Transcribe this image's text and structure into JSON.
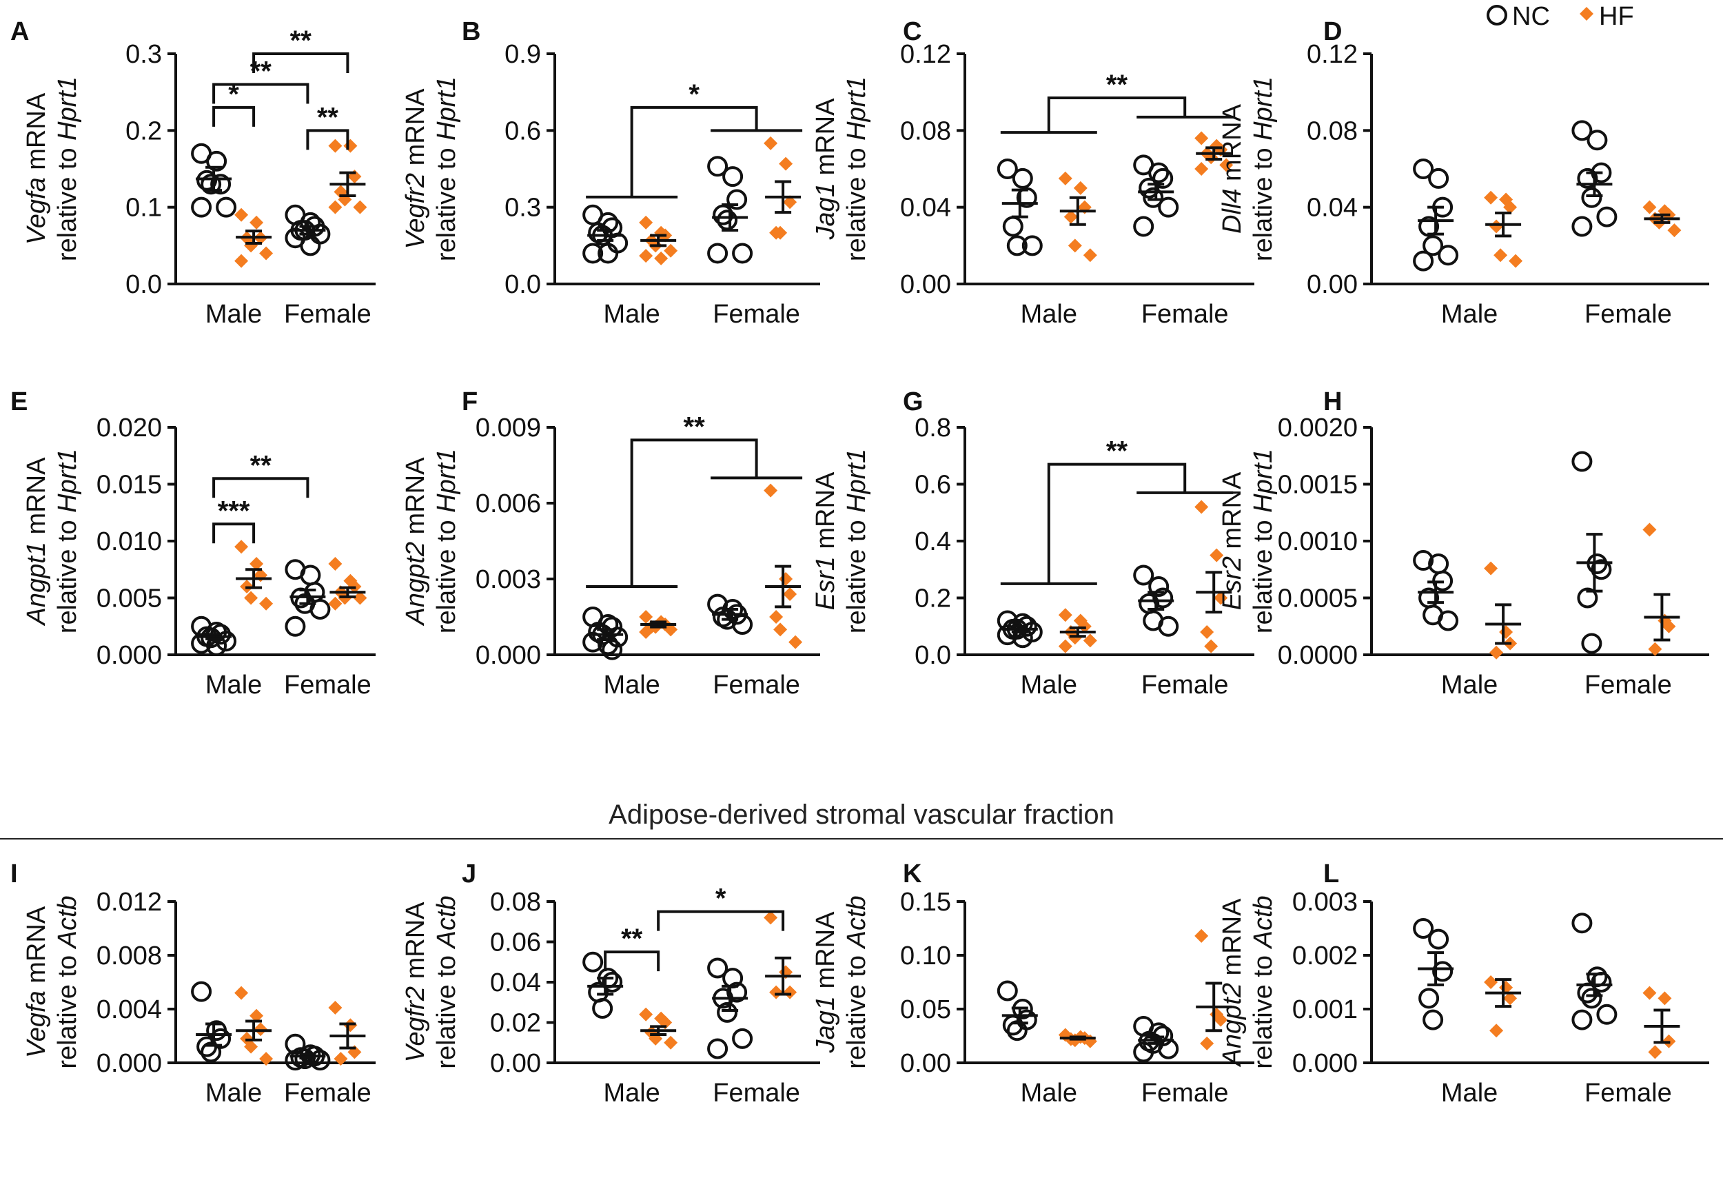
{
  "legend": {
    "items": [
      {
        "name": "NC",
        "marker": "circle",
        "color": "#111111"
      },
      {
        "name": "HF",
        "marker": "diamond",
        "color": "#f47d20"
      }
    ]
  },
  "section_title": "Adipose-derived stromal vascular fraction",
  "groups": [
    "Male",
    "Female"
  ],
  "chart_data": [
    {
      "panel": "A",
      "type": "scatter",
      "gene": "Vegfa",
      "ylabel_suffix": " mRNA",
      "ylabel2": "relative to Hprt1",
      "yticks": [
        "0.0",
        "0.1",
        "0.2",
        "0.3"
      ],
      "ylim": [
        0,
        0.3
      ],
      "series": [
        {
          "name": "NC",
          "group": "Male",
          "values": [
            0.17,
            0.16,
            0.13,
            0.135,
            0.13,
            0.1,
            0.1
          ],
          "mean": 0.137,
          "sem": 0.015
        },
        {
          "name": "HF",
          "group": "Male",
          "values": [
            0.09,
            0.08,
            0.06,
            0.06,
            0.05,
            0.04,
            0.03
          ],
          "mean": 0.061,
          "sem": 0.008
        },
        {
          "name": "NC",
          "group": "Female",
          "values": [
            0.09,
            0.08,
            0.075,
            0.07,
            0.07,
            0.065,
            0.06,
            0.05
          ],
          "mean": 0.07,
          "sem": 0.005
        },
        {
          "name": "HF",
          "group": "Female",
          "values": [
            0.18,
            0.18,
            0.14,
            0.12,
            0.11,
            0.1,
            0.1
          ],
          "mean": 0.13,
          "sem": 0.015
        }
      ],
      "brackets": [
        {
          "label": "*",
          "level": 0.23,
          "from": [
            0,
            0
          ],
          "to": [
            0,
            1
          ],
          "type": "simple"
        },
        {
          "label": "**",
          "level": 0.26,
          "from": [
            0,
            0
          ],
          "to": [
            1,
            0
          ],
          "type": "simple"
        },
        {
          "label": "**",
          "level": 0.2,
          "from": [
            1,
            0
          ],
          "to": [
            1,
            1
          ],
          "type": "simple"
        },
        {
          "label": "**",
          "level": 0.3,
          "from": [
            0,
            1
          ],
          "to": [
            1,
            1
          ],
          "type": "simple"
        }
      ]
    },
    {
      "panel": "B",
      "type": "scatter",
      "gene": "Vegfr2",
      "ylabel_suffix": " mRNA",
      "ylabel2": "relative to Hprt1",
      "yticks": [
        "0.0",
        "0.3",
        "0.6",
        "0.9"
      ],
      "ylim": [
        0,
        0.9
      ],
      "series": [
        {
          "name": "NC",
          "group": "Male",
          "values": [
            0.27,
            0.24,
            0.22,
            0.2,
            0.19,
            0.16,
            0.12,
            0.12
          ],
          "mean": 0.19,
          "sem": 0.02
        },
        {
          "name": "HF",
          "group": "Male",
          "values": [
            0.24,
            0.2,
            0.19,
            0.17,
            0.15,
            0.13,
            0.11,
            0.1
          ],
          "mean": 0.17,
          "sem": 0.02
        },
        {
          "name": "NC",
          "group": "Female",
          "values": [
            0.46,
            0.42,
            0.33,
            0.27,
            0.25,
            0.12,
            0.12
          ],
          "mean": 0.26,
          "sem": 0.05
        },
        {
          "name": "HF",
          "group": "Female",
          "values": [
            0.55,
            0.47,
            0.32,
            0.2,
            0.2
          ],
          "mean": 0.34,
          "sem": 0.06
        }
      ],
      "brackets": [
        {
          "label": "*",
          "level": 0.69,
          "type": "grouped",
          "left_top": 0.34,
          "right_top": 0.6
        }
      ]
    },
    {
      "panel": "C",
      "type": "scatter",
      "gene": "Jag1",
      "ylabel_suffix": " mRNA",
      "ylabel2": "relative to Hprt1",
      "yticks": [
        "0.00",
        "0.04",
        "0.08",
        "0.12"
      ],
      "ylim": [
        0,
        0.12
      ],
      "series": [
        {
          "name": "NC",
          "group": "Male",
          "values": [
            0.06,
            0.055,
            0.045,
            0.03,
            0.02,
            0.02
          ],
          "mean": 0.042,
          "sem": 0.007
        },
        {
          "name": "HF",
          "group": "Male",
          "values": [
            0.055,
            0.05,
            0.04,
            0.035,
            0.02,
            0.015
          ],
          "mean": 0.038,
          "sem": 0.007
        },
        {
          "name": "NC",
          "group": "Female",
          "values": [
            0.062,
            0.058,
            0.055,
            0.05,
            0.045,
            0.04,
            0.03
          ],
          "mean": 0.048,
          "sem": 0.004
        },
        {
          "name": "HF",
          "group": "Female",
          "values": [
            0.076,
            0.072,
            0.07,
            0.068,
            0.066,
            0.062,
            0.06
          ],
          "mean": 0.068,
          "sem": 0.003
        }
      ],
      "brackets": [
        {
          "label": "**",
          "level": 0.097,
          "type": "grouped",
          "left_top": 0.079,
          "right_top": 0.087
        }
      ]
    },
    {
      "panel": "D",
      "type": "scatter",
      "gene": "Dll4",
      "ylabel_suffix": " mRNA",
      "ylabel2": "relative to Hprt1",
      "yticks": [
        "0.00",
        "0.04",
        "0.08",
        "0.12"
      ],
      "ylim": [
        0,
        0.12
      ],
      "series": [
        {
          "name": "NC",
          "group": "Male",
          "values": [
            0.06,
            0.055,
            0.04,
            0.03,
            0.02,
            0.015,
            0.012
          ],
          "mean": 0.033,
          "sem": 0.007
        },
        {
          "name": "HF",
          "group": "Male",
          "values": [
            0.045,
            0.044,
            0.04,
            0.03,
            0.015,
            0.012
          ],
          "mean": 0.031,
          "sem": 0.006
        },
        {
          "name": "NC",
          "group": "Female",
          "values": [
            0.08,
            0.075,
            0.058,
            0.055,
            0.045,
            0.035,
            0.03
          ],
          "mean": 0.052,
          "sem": 0.006
        },
        {
          "name": "HF",
          "group": "Female",
          "values": [
            0.04,
            0.038,
            0.036,
            0.034,
            0.032,
            0.028
          ],
          "mean": 0.034,
          "sem": 0.002
        }
      ],
      "brackets": []
    },
    {
      "panel": "E",
      "type": "scatter",
      "gene": "Angpt1",
      "ylabel_suffix": " mRNA",
      "ylabel2": "relative to Hprt1",
      "yticks": [
        "0.000",
        "0.005",
        "0.010",
        "0.015",
        "0.020"
      ],
      "ylim": [
        0,
        0.02
      ],
      "series": [
        {
          "name": "NC",
          "group": "Male",
          "values": [
            0.0025,
            0.002,
            0.0018,
            0.0016,
            0.0015,
            0.0012,
            0.001,
            0.0008
          ],
          "mean": 0.0016,
          "sem": 0.0002
        },
        {
          "name": "HF",
          "group": "Male",
          "values": [
            0.0095,
            0.008,
            0.007,
            0.006,
            0.005,
            0.0045
          ],
          "mean": 0.0067,
          "sem": 0.0008
        },
        {
          "name": "NC",
          "group": "Female",
          "values": [
            0.0075,
            0.007,
            0.0055,
            0.005,
            0.0045,
            0.004,
            0.0025
          ],
          "mean": 0.0051,
          "sem": 0.0006
        },
        {
          "name": "HF",
          "group": "Female",
          "values": [
            0.008,
            0.0065,
            0.006,
            0.0055,
            0.005,
            0.005,
            0.0045
          ],
          "mean": 0.0055,
          "sem": 0.0004
        }
      ],
      "brackets": [
        {
          "label": "***",
          "level": 0.0115,
          "from": [
            0,
            0
          ],
          "to": [
            0,
            1
          ],
          "type": "simple"
        },
        {
          "label": "**",
          "level": 0.0155,
          "from": [
            0,
            0
          ],
          "to": [
            1,
            0
          ],
          "type": "simple"
        }
      ]
    },
    {
      "panel": "F",
      "type": "scatter",
      "gene": "Angpt2",
      "ylabel_suffix": " mRNA",
      "ylabel2": "relative to Hprt1",
      "yticks": [
        "0.000",
        "0.003",
        "0.006",
        "0.009"
      ],
      "ylim": [
        0,
        0.009
      ],
      "series": [
        {
          "name": "NC",
          "group": "Male",
          "values": [
            0.0015,
            0.0012,
            0.0011,
            0.0009,
            0.0008,
            0.0007,
            0.0005,
            0.0004,
            0.0002
          ],
          "mean": 0.0008,
          "sem": 0.0002
        },
        {
          "name": "HF",
          "group": "Male",
          "values": [
            0.0015,
            0.0013,
            0.0012,
            0.0011,
            0.0011,
            0.001,
            0.0009
          ],
          "mean": 0.0012,
          "sem": 0.0001
        },
        {
          "name": "NC",
          "group": "Female",
          "values": [
            0.002,
            0.0018,
            0.0016,
            0.0015,
            0.0014,
            0.0012
          ],
          "mean": 0.0016,
          "sem": 0.0002
        },
        {
          "name": "HF",
          "group": "Female",
          "values": [
            0.0065,
            0.003,
            0.0024,
            0.0015,
            0.001,
            0.0005
          ],
          "mean": 0.0027,
          "sem": 0.0008
        }
      ],
      "brackets": [
        {
          "label": "**",
          "level": 0.0085,
          "type": "grouped",
          "left_top": 0.0027,
          "right_top": 0.007
        }
      ]
    },
    {
      "panel": "G",
      "type": "scatter",
      "gene": "Esr1",
      "ylabel_suffix": " mRNA",
      "ylabel2": "relative to Hprt1",
      "yticks": [
        "0.0",
        "0.2",
        "0.4",
        "0.6",
        "0.8"
      ],
      "ylim": [
        0,
        0.8
      ],
      "series": [
        {
          "name": "NC",
          "group": "Male",
          "values": [
            0.12,
            0.11,
            0.1,
            0.09,
            0.09,
            0.08,
            0.07,
            0.06
          ],
          "mean": 0.09,
          "sem": 0.01
        },
        {
          "name": "HF",
          "group": "Male",
          "values": [
            0.14,
            0.12,
            0.1,
            0.08,
            0.06,
            0.05,
            0.03
          ],
          "mean": 0.08,
          "sem": 0.015
        },
        {
          "name": "NC",
          "group": "Female",
          "values": [
            0.28,
            0.24,
            0.2,
            0.18,
            0.12,
            0.1
          ],
          "mean": 0.19,
          "sem": 0.03
        },
        {
          "name": "HF",
          "group": "Female",
          "values": [
            0.52,
            0.35,
            0.2,
            0.08,
            0.03
          ],
          "mean": 0.22,
          "sem": 0.07
        }
      ],
      "brackets": [
        {
          "label": "**",
          "level": 0.67,
          "type": "grouped",
          "left_top": 0.25,
          "right_top": 0.57
        }
      ]
    },
    {
      "panel": "H",
      "type": "scatter",
      "gene": "Esr2",
      "ylabel_suffix": " mRNA",
      "ylabel2": "relative to Hprt1",
      "yticks": [
        "0.0000",
        "0.0005",
        "0.0010",
        "0.0015",
        "0.0020"
      ],
      "ylim": [
        0,
        0.002
      ],
      "series": [
        {
          "name": "NC",
          "group": "Male",
          "values": [
            0.00083,
            0.0008,
            0.00065,
            0.0005,
            0.00035,
            0.0003
          ],
          "mean": 0.00055,
          "sem": 9e-05
        },
        {
          "name": "HF",
          "group": "Male",
          "values": [
            0.00076,
            0.0002,
            0.0001,
            2e-05
          ],
          "mean": 0.00027,
          "sem": 0.00017
        },
        {
          "name": "NC",
          "group": "Female",
          "values": [
            0.0017,
            0.0008,
            0.00075,
            0.0005,
            0.0001
          ],
          "mean": 0.00081,
          "sem": 0.00025
        },
        {
          "name": "HF",
          "group": "Female",
          "values": [
            0.0011,
            0.0003,
            0.00025,
            5e-05
          ],
          "mean": 0.00033,
          "sem": 0.0002
        }
      ],
      "brackets": []
    },
    {
      "panel": "I",
      "type": "scatter",
      "gene": "Vegfa",
      "ylabel_suffix": " mRNA",
      "ylabel2": "relative to Actb",
      "yticks": [
        "0.000",
        "0.004",
        "0.008",
        "0.012"
      ],
      "ylim": [
        0,
        0.012
      ],
      "series": [
        {
          "name": "NC",
          "group": "Male",
          "values": [
            0.0053,
            0.0024,
            0.0018,
            0.0012,
            0.0008
          ],
          "mean": 0.0021,
          "sem": 0.0008
        },
        {
          "name": "HF",
          "group": "Male",
          "values": [
            0.0052,
            0.0035,
            0.0025,
            0.0018,
            0.0012,
            0.0003
          ],
          "mean": 0.0024,
          "sem": 0.0007
        },
        {
          "name": "NC",
          "group": "Female",
          "values": [
            0.0014,
            0.0006,
            0.0005,
            0.0004,
            0.0003,
            0.0002,
            0.0002
          ],
          "mean": 0.0005,
          "sem": 0.00015
        },
        {
          "name": "HF",
          "group": "Female",
          "values": [
            0.0041,
            0.0028,
            0.0008,
            0.0003
          ],
          "mean": 0.002,
          "sem": 0.0009
        }
      ],
      "brackets": []
    },
    {
      "panel": "J",
      "type": "scatter",
      "gene": "Vegfr2",
      "ylabel_suffix": " mRNA",
      "ylabel2": "relative to Actb",
      "yticks": [
        "0.00",
        "0.02",
        "0.04",
        "0.06",
        "0.08"
      ],
      "ylim": [
        0,
        0.08
      ],
      "series": [
        {
          "name": "NC",
          "group": "Male",
          "values": [
            0.05,
            0.042,
            0.04,
            0.035,
            0.027
          ],
          "mean": 0.038,
          "sem": 0.004
        },
        {
          "name": "HF",
          "group": "Male",
          "values": [
            0.024,
            0.022,
            0.02,
            0.015,
            0.012,
            0.01
          ],
          "mean": 0.016,
          "sem": 0.002
        },
        {
          "name": "NC",
          "group": "Female",
          "values": [
            0.047,
            0.042,
            0.035,
            0.032,
            0.025,
            0.012,
            0.007
          ],
          "mean": 0.032,
          "sem": 0.006
        },
        {
          "name": "HF",
          "group": "Female",
          "values": [
            0.072,
            0.045,
            0.035,
            0.035
          ],
          "mean": 0.043,
          "sem": 0.009
        }
      ],
      "brackets": [
        {
          "label": "**",
          "level": 0.055,
          "from": [
            0,
            0
          ],
          "to": [
            0,
            1
          ],
          "type": "simple"
        },
        {
          "label": "*",
          "level": 0.075,
          "from": [
            0,
            1
          ],
          "to": [
            1,
            1
          ],
          "type": "simple"
        }
      ]
    },
    {
      "panel": "K",
      "type": "scatter",
      "gene": "Jag1",
      "ylabel_suffix": " mRNA",
      "ylabel2": "relative to Actb",
      "yticks": [
        "0.00",
        "0.05",
        "0.10",
        "0.15"
      ],
      "ylim": [
        0,
        0.15
      ],
      "series": [
        {
          "name": "NC",
          "group": "Male",
          "values": [
            0.067,
            0.05,
            0.04,
            0.035,
            0.03
          ],
          "mean": 0.044,
          "sem": 0.007
        },
        {
          "name": "HF",
          "group": "Male",
          "values": [
            0.026,
            0.024,
            0.023,
            0.022,
            0.021,
            0.02
          ],
          "mean": 0.023,
          "sem": 0.001
        },
        {
          "name": "NC",
          "group": "Female",
          "values": [
            0.034,
            0.028,
            0.025,
            0.02,
            0.018,
            0.013,
            0.01
          ],
          "mean": 0.021,
          "sem": 0.003
        },
        {
          "name": "HF",
          "group": "Female",
          "values": [
            0.118,
            0.045,
            0.04,
            0.018
          ],
          "mean": 0.052,
          "sem": 0.022
        }
      ],
      "brackets": []
    },
    {
      "panel": "L",
      "type": "scatter",
      "gene": "Angpt2",
      "ylabel_suffix": " mRNA",
      "ylabel2": "relative to Actb",
      "yticks": [
        "0.000",
        "0.001",
        "0.002",
        "0.003"
      ],
      "ylim": [
        0,
        0.003
      ],
      "series": [
        {
          "name": "NC",
          "group": "Male",
          "values": [
            0.0025,
            0.0023,
            0.0017,
            0.0012,
            0.0008
          ],
          "mean": 0.00175,
          "sem": 0.0003
        },
        {
          "name": "HF",
          "group": "Male",
          "values": [
            0.0015,
            0.0014,
            0.0012,
            0.0006
          ],
          "mean": 0.0013,
          "sem": 0.00025
        },
        {
          "name": "NC",
          "group": "Female",
          "values": [
            0.0026,
            0.0016,
            0.0015,
            0.0013,
            0.0012,
            0.0009,
            0.0008
          ],
          "mean": 0.00145,
          "sem": 0.0002
        },
        {
          "name": "HF",
          "group": "Female",
          "values": [
            0.0013,
            0.0012,
            0.0004,
            0.0002
          ],
          "mean": 0.00068,
          "sem": 0.0003
        }
      ],
      "brackets": []
    }
  ]
}
